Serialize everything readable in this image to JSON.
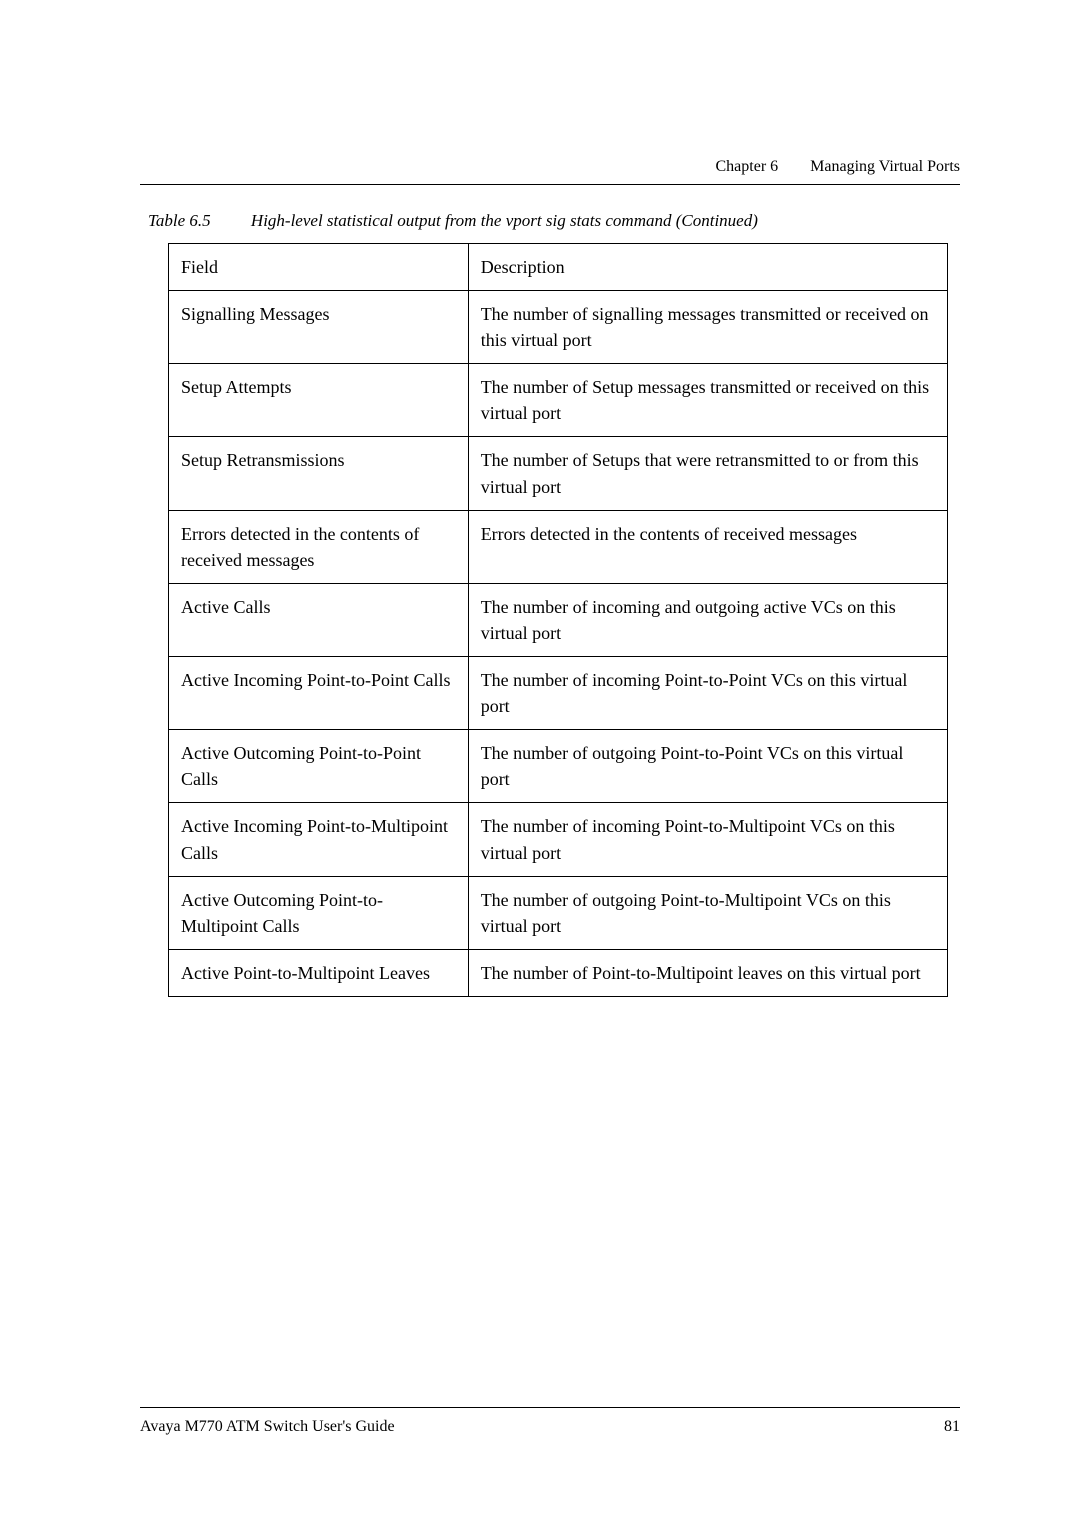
{
  "header": {
    "chapter": "Chapter 6",
    "title": "Managing Virtual Ports"
  },
  "caption": {
    "label": "Table 6.5",
    "text": "High-level statistical output from the vport sig stats command (Continued)"
  },
  "table": {
    "header": {
      "field": "Field",
      "description": "Description"
    },
    "rows": [
      {
        "field": "Signalling Messages",
        "description": "The number of signalling messages transmitted or received on this virtual port"
      },
      {
        "field": "Setup Attempts",
        "description": "The number of Setup messages transmitted or received on this virtual port"
      },
      {
        "field": "Setup Retransmissions",
        "description": "The number of Setups that were retransmitted to or from this virtual port"
      },
      {
        "field": "Errors detected in the contents of received messages",
        "description": "Errors detected in the contents of received messages"
      },
      {
        "field": "Active Calls",
        "description": "The number of incoming and outgoing active VCs on this virtual port"
      },
      {
        "field": "Active Incoming Point-to-Point Calls",
        "description": "The number of incoming Point-to-Point VCs on this virtual port"
      },
      {
        "field": "Active Outcoming Point-to-Point Calls",
        "description": "The number of outgoing Point-to-Point VCs on this virtual port"
      },
      {
        "field": "Active Incoming Point-to-Multipoint Calls",
        "description": "The number of incoming Point-to-Multipoint VCs on this virtual port"
      },
      {
        "field": "Active Outcoming Point-to-Multipoint Calls",
        "description": "The number of outgoing Point-to-Multipoint VCs on this virtual port"
      },
      {
        "field": "Active Point-to-Multipoint Leaves",
        "description": "The number of Point-to-Multipoint leaves on this virtual port"
      }
    ]
  },
  "footer": {
    "guide": "Avaya M770 ATM Switch User's Guide",
    "page": "81"
  }
}
